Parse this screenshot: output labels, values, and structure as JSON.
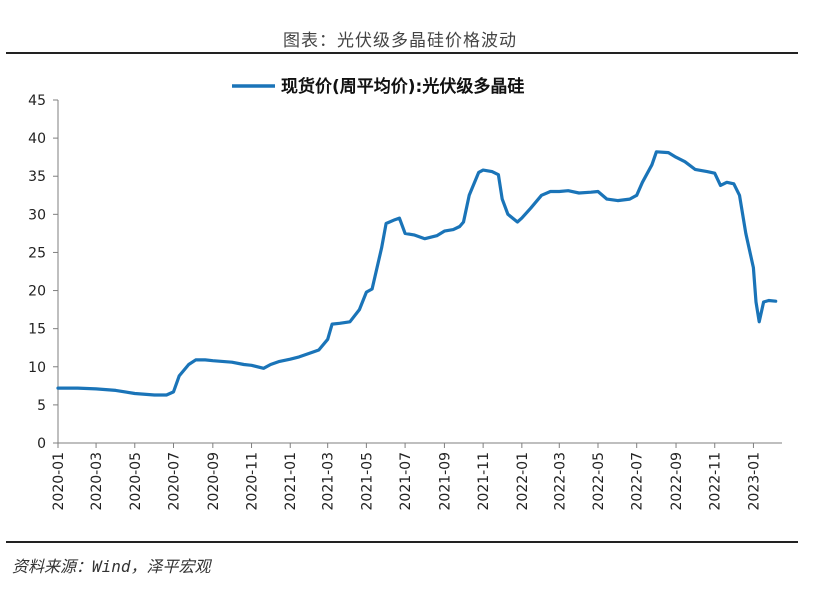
{
  "header": {
    "title": "图表：光伏级多晶硅价格波动"
  },
  "footer": {
    "source": "资料来源：Wind，泽平宏观"
  },
  "colors": {
    "line": "#1a74b8",
    "axis": "#7f7f7f",
    "text": "#222222"
  },
  "chart_data": {
    "type": "line",
    "title": "图表：光伏级多晶硅价格波动",
    "xlabel": "",
    "ylabel": "",
    "ylim": [
      0,
      45
    ],
    "yticks": [
      0,
      5,
      10,
      15,
      20,
      25,
      30,
      35,
      40,
      45
    ],
    "xticks": [
      "2020-01",
      "2020-03",
      "2020-05",
      "2020-07",
      "2020-09",
      "2020-11",
      "2021-01",
      "2021-03",
      "2021-05",
      "2021-07",
      "2021-09",
      "2021-11",
      "2022-01",
      "2022-03",
      "2022-05",
      "2022-07",
      "2022-09",
      "2022-11",
      "2023-01"
    ],
    "grid": false,
    "legend_position": "top-center",
    "series": [
      {
        "name": "现货价(周平均价):光伏级多晶硅",
        "x": [
          "2020-01-01",
          "2020-02-01",
          "2020-03-01",
          "2020-04-01",
          "2020-05-01",
          "2020-06-01",
          "2020-06-20",
          "2020-07-01",
          "2020-07-10",
          "2020-07-25",
          "2020-08-05",
          "2020-08-20",
          "2020-09-01",
          "2020-10-01",
          "2020-10-20",
          "2020-11-01",
          "2020-11-20",
          "2020-12-01",
          "2020-12-15",
          "2021-01-01",
          "2021-01-15",
          "2021-02-01",
          "2021-02-15",
          "2021-03-01",
          "2021-03-08",
          "2021-03-20",
          "2021-04-05",
          "2021-04-20",
          "2021-05-01",
          "2021-05-10",
          "2021-05-25",
          "2021-06-01",
          "2021-06-15",
          "2021-06-22",
          "2021-07-01",
          "2021-07-15",
          "2021-08-01",
          "2021-08-20",
          "2021-09-01",
          "2021-09-15",
          "2021-09-25",
          "2021-10-01",
          "2021-10-10",
          "2021-10-25",
          "2021-11-01",
          "2021-11-15",
          "2021-11-25",
          "2021-12-01",
          "2021-12-10",
          "2021-12-25",
          "2022-01-01",
          "2022-01-15",
          "2022-02-01",
          "2022-02-15",
          "2022-03-01",
          "2022-03-15",
          "2022-04-01",
          "2022-04-20",
          "2022-05-01",
          "2022-05-15",
          "2022-06-01",
          "2022-06-20",
          "2022-07-01",
          "2022-07-10",
          "2022-07-25",
          "2022-08-01",
          "2022-08-20",
          "2022-09-01",
          "2022-09-15",
          "2022-10-01",
          "2022-10-20",
          "2022-11-01",
          "2022-11-10",
          "2022-11-20",
          "2022-12-01",
          "2022-12-10",
          "2022-12-20",
          "2023-01-01",
          "2023-01-05",
          "2023-01-10",
          "2023-01-17",
          "2023-01-25",
          "2023-02-05"
        ],
        "values": [
          7.2,
          7.2,
          7.1,
          6.9,
          6.5,
          6.3,
          6.3,
          6.7,
          8.8,
          10.3,
          10.9,
          10.9,
          10.8,
          10.6,
          10.3,
          10.2,
          9.8,
          10.3,
          10.7,
          11.0,
          11.3,
          11.8,
          12.2,
          13.6,
          15.6,
          15.7,
          15.9,
          17.5,
          19.8,
          20.2,
          25.6,
          28.8,
          29.3,
          29.5,
          27.5,
          27.3,
          26.8,
          27.2,
          27.8,
          28.0,
          28.4,
          29.0,
          32.5,
          35.5,
          35.8,
          35.6,
          35.2,
          32.0,
          30.0,
          29.0,
          29.5,
          30.8,
          32.5,
          33.0,
          33.0,
          33.1,
          32.8,
          32.9,
          33.0,
          32.0,
          31.8,
          32.0,
          32.5,
          34.2,
          36.5,
          38.2,
          38.1,
          37.5,
          36.9,
          35.9,
          35.6,
          35.4,
          33.8,
          34.2,
          34.0,
          32.5,
          27.5,
          23.0,
          18.5,
          15.9,
          18.5,
          18.7,
          18.6
        ]
      }
    ]
  }
}
